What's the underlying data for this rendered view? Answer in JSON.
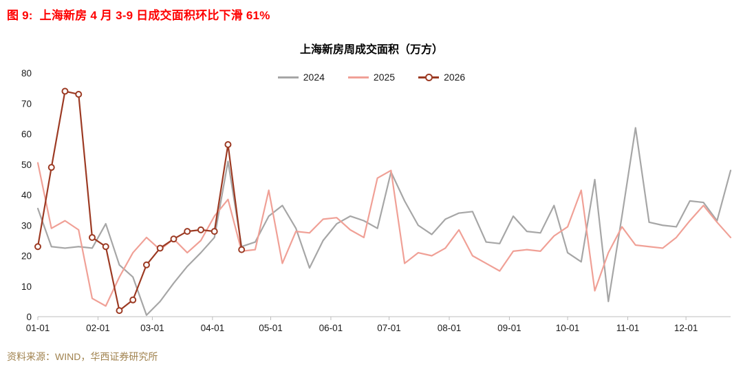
{
  "figure": {
    "caption_label": "图 9:",
    "caption_text": "上海新房 4 月 3-9 日成交面积环比下滑 61%"
  },
  "chart_data": {
    "type": "line",
    "title": "上海新房周成交面积（万方）",
    "xlabel": "",
    "ylabel": "",
    "ylim": [
      0,
      80
    ],
    "y_ticks": [
      0,
      10,
      20,
      30,
      40,
      50,
      60,
      70,
      80
    ],
    "grid": false,
    "legend_position": "top-center",
    "x_unit": "week",
    "x_total_days": 357,
    "x_tick_labels": [
      "01-01",
      "02-01",
      "03-01",
      "04-01",
      "05-01",
      "06-01",
      "07-01",
      "08-01",
      "09-01",
      "10-01",
      "11-01",
      "12-01"
    ],
    "x_tick_days": [
      0,
      31,
      59,
      90,
      120,
      151,
      181,
      212,
      243,
      273,
      304,
      334
    ],
    "series": [
      {
        "name": "2024",
        "color": "#a6a6a6",
        "marker": false,
        "values": [
          35.5,
          23,
          22.5,
          23,
          22.5,
          30.5,
          17,
          13,
          0.5,
          5,
          11,
          16.5,
          21,
          26,
          51,
          23,
          24.5,
          33,
          36.5,
          29,
          16,
          25,
          30.5,
          33,
          31.5,
          29,
          47.5,
          38,
          30,
          27,
          32,
          34,
          34.5,
          24.5,
          24,
          33,
          28,
          27.5,
          36.5,
          21,
          18,
          45,
          5,
          33,
          62,
          31,
          30,
          29.5,
          38,
          37.5,
          31.5,
          48
        ]
      },
      {
        "name": "2025",
        "color": "#f0a096",
        "marker": false,
        "values": [
          50.5,
          29,
          31.5,
          28.5,
          6,
          3.5,
          13,
          21,
          26,
          22,
          25.5,
          21,
          25,
          33,
          38.5,
          21.5,
          22,
          41.5,
          17.5,
          28,
          27.5,
          32,
          32.5,
          28.5,
          26,
          45.5,
          48,
          17.5,
          21,
          20,
          22.5,
          28.5,
          20,
          17.5,
          15,
          21.5,
          22,
          21.5,
          26.5,
          29.5,
          41.5,
          8.5,
          21,
          29.5,
          23.5,
          23,
          22.5,
          26,
          31.5,
          36.5,
          31,
          26
        ]
      },
      {
        "name": "2026",
        "color": "#9c3a23",
        "marker": true,
        "values": [
          23,
          49,
          74,
          73,
          26,
          23,
          2,
          5.5,
          17,
          22.5,
          25.5,
          28,
          28.5,
          28,
          56.5,
          22
        ]
      }
    ]
  },
  "source": {
    "text": "资料来源：WIND，华西证券研究所"
  }
}
